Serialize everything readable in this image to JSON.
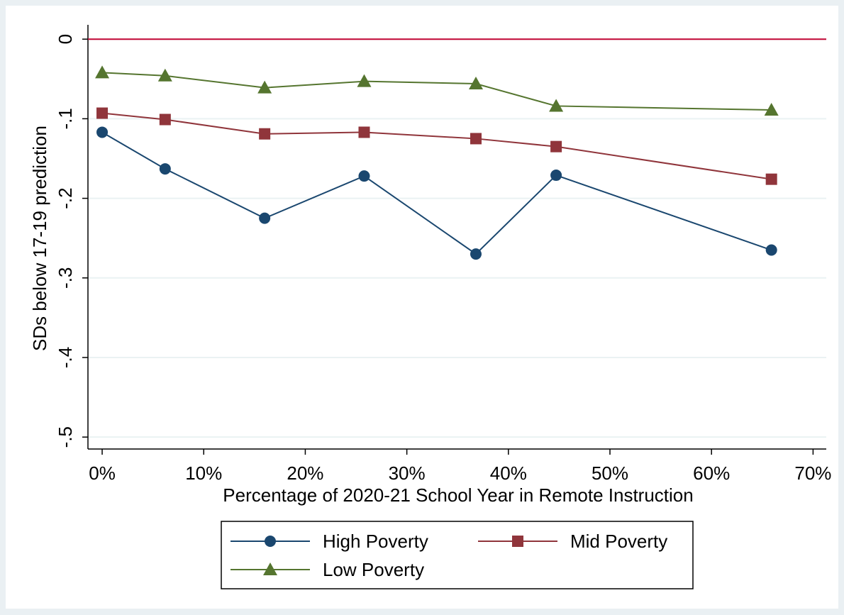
{
  "chart_data": {
    "type": "line",
    "x_label": "Percentage of 2020-21 School Year in Remote Instruction",
    "y_label": "SDs below 17-19 prediction",
    "x": [
      0,
      6.2,
      16,
      25.8,
      36.8,
      44.7,
      65.9
    ],
    "series": [
      {
        "name": "High Poverty",
        "color": "#1a476f",
        "marker": "circle",
        "values": [
          -0.117,
          -0.163,
          -0.225,
          -0.172,
          -0.27,
          -0.171,
          -0.265
        ]
      },
      {
        "name": "Mid Poverty",
        "color": "#90353b",
        "marker": "square",
        "values": [
          -0.093,
          -0.101,
          -0.119,
          -0.117,
          -0.125,
          -0.135,
          -0.176
        ]
      },
      {
        "name": "Low Poverty",
        "color": "#55752f",
        "marker": "triangle",
        "values": [
          -0.042,
          -0.046,
          -0.061,
          -0.053,
          -0.056,
          -0.084,
          -0.089
        ]
      }
    ],
    "xlim": [
      -1.4,
      71.3
    ],
    "ylim": [
      -0.515,
      0.018
    ],
    "xticks": [
      {
        "value": 0,
        "label": "0%"
      },
      {
        "value": 10,
        "label": "10%"
      },
      {
        "value": 20,
        "label": "20%"
      },
      {
        "value": 30,
        "label": "30%"
      },
      {
        "value": 40,
        "label": "40%"
      },
      {
        "value": 50,
        "label": "50%"
      },
      {
        "value": 60,
        "label": "60%"
      },
      {
        "value": 70,
        "label": "70%"
      }
    ],
    "yticks": [
      0,
      {
        "value": -0.1,
        "label": "-.1"
      },
      {
        "value": -0.2,
        "label": "-.2"
      },
      {
        "value": -0.3,
        "label": "-.3"
      },
      {
        "value": -0.4,
        "label": "-.4"
      },
      {
        "value": -0.5,
        "label": "-.5"
      }
    ],
    "reference_line": {
      "y": 0,
      "color": "#c10534"
    },
    "grid": true,
    "legend": "bottom"
  }
}
